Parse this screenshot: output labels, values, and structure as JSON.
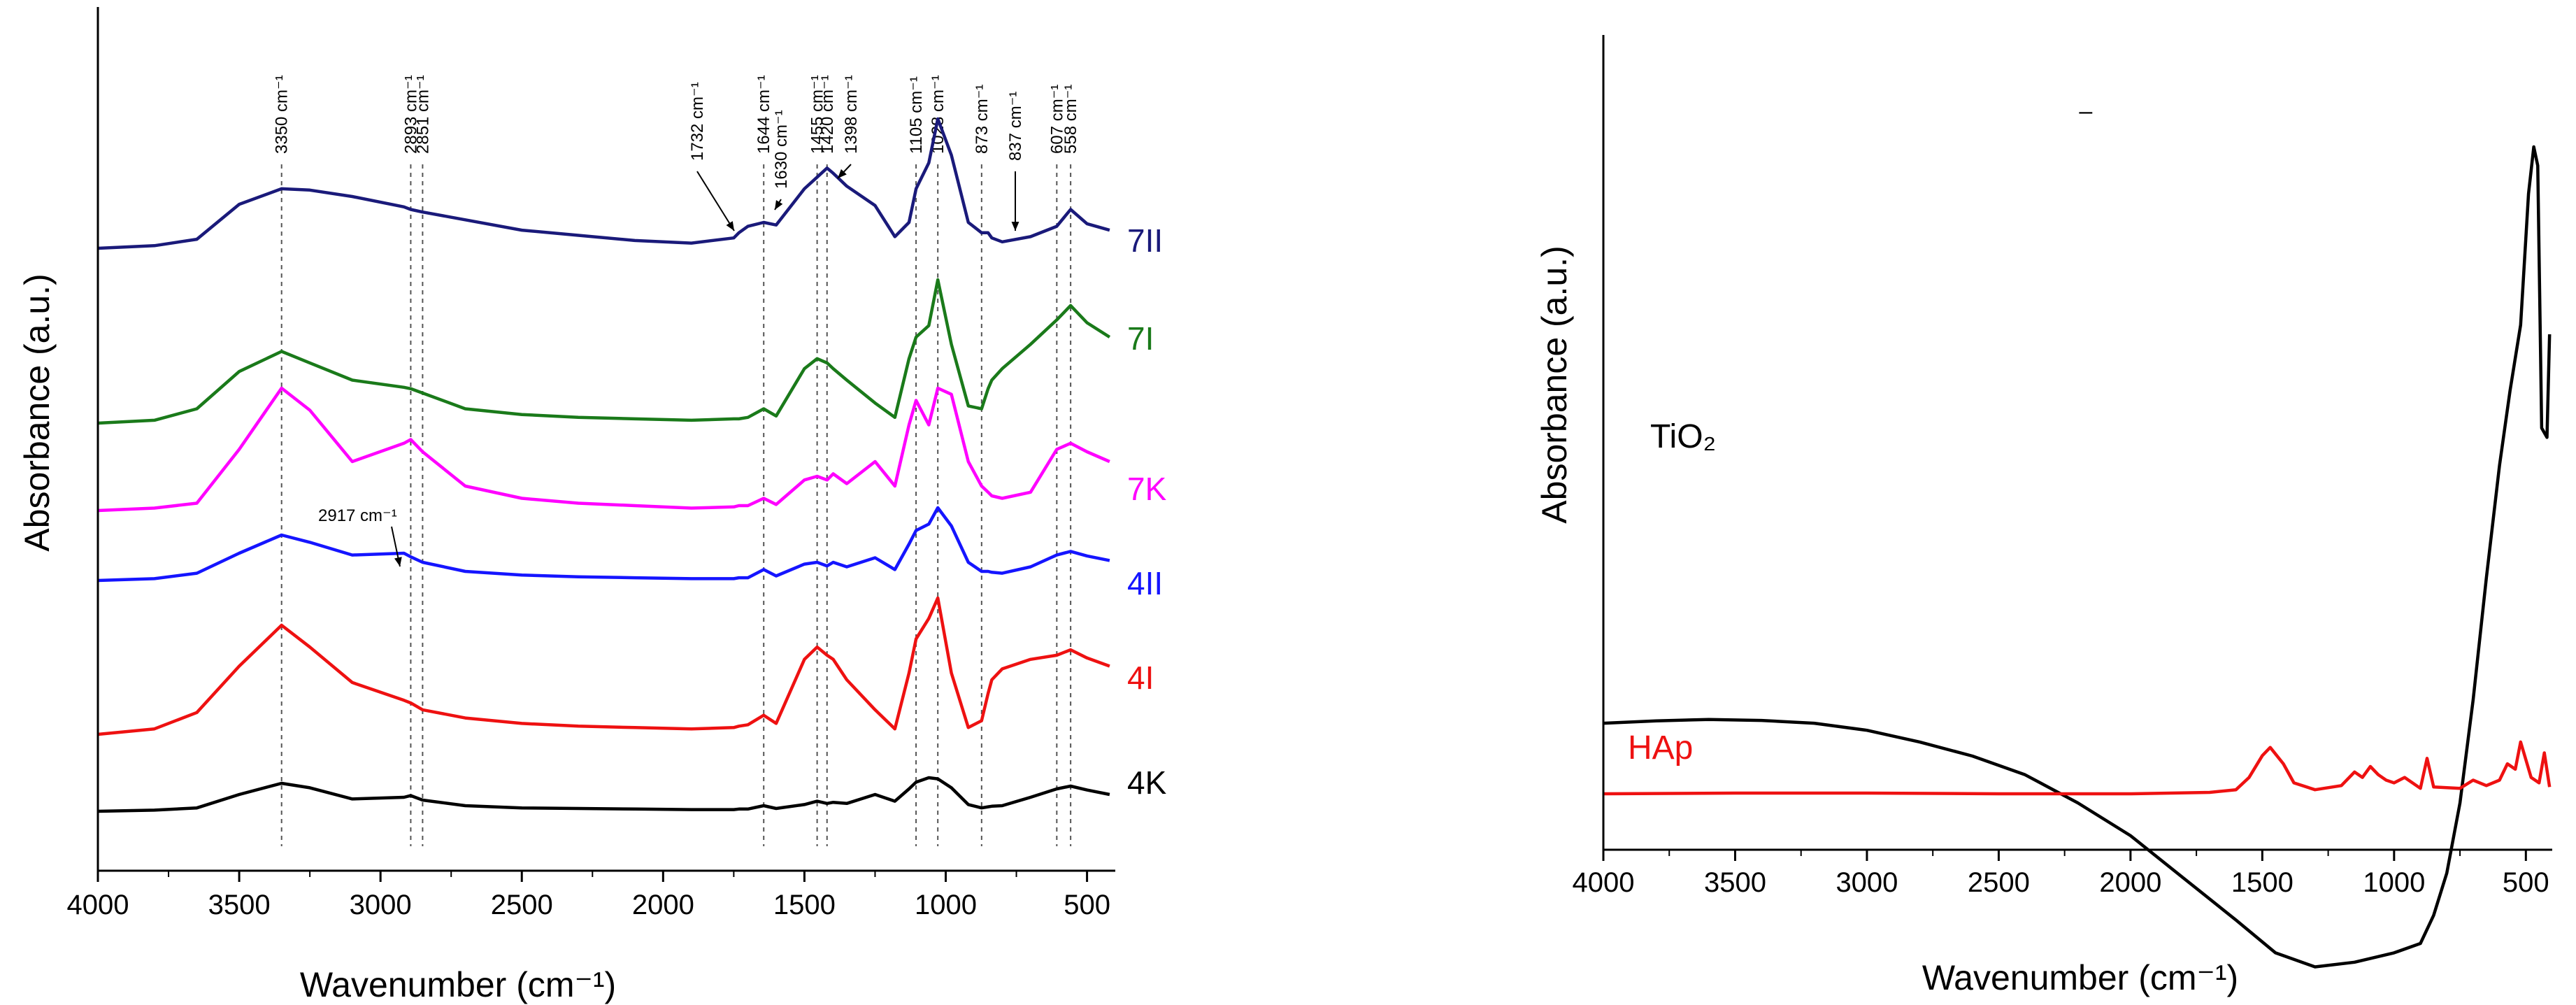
{
  "chart_data": [
    {
      "type": "line",
      "xlabel": "Wavenumber (cm⁻¹)",
      "ylabel": "Absorbance (a.u.)",
      "xlim": [
        4000,
        400
      ],
      "xticks": [
        4000,
        3500,
        3000,
        2500,
        2000,
        1500,
        1000,
        500
      ],
      "yticks": false,
      "grid": false,
      "x": [
        4000,
        3800,
        3650,
        3500,
        3350,
        3250,
        3100,
        2917,
        2893,
        2851,
        2700,
        2500,
        2300,
        2100,
        1900,
        1750,
        1732,
        1700,
        1644,
        1600,
        1500,
        1455,
        1420,
        1398,
        1350,
        1250,
        1180,
        1130,
        1105,
        1060,
        1028,
        980,
        920,
        873,
        850,
        837,
        800,
        700,
        607,
        558,
        500,
        420
      ],
      "series": [
        {
          "name": "7II",
          "color": "#1a1a7a",
          "values": [
            0.0,
            0.02,
            0.07,
            0.34,
            0.46,
            0.45,
            0.4,
            0.32,
            0.3,
            0.28,
            0.22,
            0.14,
            0.1,
            0.06,
            0.04,
            0.08,
            0.12,
            0.17,
            0.2,
            0.18,
            0.46,
            0.55,
            0.62,
            0.58,
            0.48,
            0.33,
            0.09,
            0.2,
            0.46,
            0.66,
            1.0,
            0.72,
            0.2,
            0.12,
            0.12,
            0.08,
            0.05,
            0.09,
            0.17,
            0.3,
            0.19,
            0.14
          ]
        },
        {
          "name": "7I",
          "color": "#1a7a1a",
          "values": [
            0.0,
            0.02,
            0.1,
            0.36,
            0.5,
            0.42,
            0.3,
            0.25,
            0.24,
            0.21,
            0.1,
            0.06,
            0.04,
            0.03,
            0.02,
            0.03,
            0.03,
            0.04,
            0.1,
            0.05,
            0.38,
            0.45,
            0.42,
            0.38,
            0.3,
            0.14,
            0.04,
            0.45,
            0.6,
            0.68,
            1.0,
            0.55,
            0.12,
            0.1,
            0.24,
            0.3,
            0.38,
            0.55,
            0.72,
            0.82,
            0.7,
            0.6
          ]
        },
        {
          "name": "7K",
          "color": "#ff00ff",
          "values": [
            0.0,
            0.02,
            0.06,
            0.5,
            1.0,
            0.82,
            0.4,
            0.55,
            0.58,
            0.48,
            0.2,
            0.1,
            0.06,
            0.04,
            0.02,
            0.03,
            0.04,
            0.04,
            0.1,
            0.05,
            0.25,
            0.28,
            0.25,
            0.3,
            0.22,
            0.4,
            0.2,
            0.7,
            0.9,
            0.7,
            1.0,
            0.95,
            0.4,
            0.2,
            0.15,
            0.12,
            0.1,
            0.15,
            0.5,
            0.55,
            0.48,
            0.4
          ]
        },
        {
          "name": "4II",
          "color": "#1515ff",
          "values": [
            0.0,
            0.02,
            0.08,
            0.3,
            0.5,
            0.42,
            0.28,
            0.3,
            0.26,
            0.2,
            0.1,
            0.06,
            0.04,
            0.03,
            0.02,
            0.02,
            0.03,
            0.03,
            0.12,
            0.05,
            0.18,
            0.2,
            0.16,
            0.2,
            0.15,
            0.25,
            0.12,
            0.4,
            0.55,
            0.62,
            0.8,
            0.6,
            0.2,
            0.1,
            0.1,
            0.09,
            0.08,
            0.15,
            0.28,
            0.32,
            0.27,
            0.22
          ]
        },
        {
          "name": "4I",
          "color": "#ee1111",
          "values": [
            0.0,
            0.04,
            0.16,
            0.5,
            0.8,
            0.64,
            0.38,
            0.25,
            0.23,
            0.18,
            0.12,
            0.08,
            0.06,
            0.05,
            0.04,
            0.05,
            0.06,
            0.07,
            0.14,
            0.08,
            0.55,
            0.64,
            0.58,
            0.55,
            0.4,
            0.18,
            0.04,
            0.45,
            0.7,
            0.85,
            1.0,
            0.45,
            0.05,
            0.1,
            0.3,
            0.4,
            0.48,
            0.55,
            0.58,
            0.62,
            0.56,
            0.5
          ]
        },
        {
          "name": "4K",
          "color": "#000000",
          "values": [
            0.0,
            0.02,
            0.06,
            0.3,
            0.5,
            0.42,
            0.22,
            0.25,
            0.28,
            0.2,
            0.1,
            0.06,
            0.05,
            0.04,
            0.03,
            0.03,
            0.04,
            0.04,
            0.1,
            0.05,
            0.12,
            0.18,
            0.14,
            0.16,
            0.14,
            0.3,
            0.18,
            0.4,
            0.52,
            0.6,
            0.58,
            0.42,
            0.12,
            0.06,
            0.08,
            0.09,
            0.1,
            0.25,
            0.4,
            0.45,
            0.38,
            0.3
          ]
        }
      ],
      "series_labels": [
        "7II",
        "7I",
        "7K",
        "4II",
        "4I",
        "4K"
      ],
      "reference_lines": [
        {
          "wavenumber": 3350,
          "label": "3350 cm⁻¹"
        },
        {
          "wavenumber": 2893,
          "label": "2893 cm⁻¹"
        },
        {
          "wavenumber": 2851,
          "label": "2851 cm⁻¹"
        },
        {
          "wavenumber": 1644,
          "label": "1644 cm⁻¹"
        },
        {
          "wavenumber": 1455,
          "label": "1455 cm⁻¹"
        },
        {
          "wavenumber": 1420,
          "label": "1420 cm⁻¹"
        },
        {
          "wavenumber": 1105,
          "label": "1105 cm⁻¹"
        },
        {
          "wavenumber": 1028,
          "label": "1028 cm⁻¹"
        },
        {
          "wavenumber": 873,
          "label": "873 cm⁻¹"
        },
        {
          "wavenumber": 607,
          "label": "607 cm⁻¹"
        },
        {
          "wavenumber": 558,
          "label": "558 cm⁻¹"
        }
      ],
      "annotations": [
        {
          "text": "1732 cm⁻¹",
          "wavenumber": 1732,
          "series": "7II"
        },
        {
          "text": "1630 cm⁻¹",
          "wavenumber": 1630,
          "series": "7II"
        },
        {
          "text": "1398 cm⁻¹",
          "wavenumber": 1398,
          "series": "7II"
        },
        {
          "text": "837 cm⁻¹",
          "wavenumber": 837,
          "series": "7II"
        },
        {
          "text": "2917 cm⁻¹",
          "wavenumber": 2917,
          "series": "4II"
        }
      ]
    },
    {
      "type": "line",
      "xlabel": "Wavenumber (cm⁻¹)",
      "ylabel": "Absorbance (a.u.)",
      "xlim": [
        4000,
        400
      ],
      "xticks": [
        4000,
        3500,
        3000,
        2500,
        2000,
        1500,
        1000,
        500
      ],
      "yticks": false,
      "grid": false,
      "series": [
        {
          "name": "TiO₂",
          "color": "#000000",
          "x": [
            4000,
            3800,
            3600,
            3400,
            3200,
            3000,
            2800,
            2600,
            2400,
            2200,
            2000,
            1800,
            1600,
            1450,
            1300,
            1150,
            1000,
            900,
            850,
            800,
            750,
            700,
            650,
            600,
            560,
            520,
            490,
            470,
            455,
            440,
            420,
            410
          ],
          "values": [
            0.77,
            0.775,
            0.778,
            0.776,
            0.77,
            0.755,
            0.73,
            0.7,
            0.66,
            0.6,
            0.53,
            0.44,
            0.35,
            0.28,
            0.25,
            0.26,
            0.28,
            0.3,
            0.36,
            0.45,
            0.6,
            0.82,
            1.08,
            1.32,
            1.48,
            1.62,
            1.9,
            2.0,
            1.96,
            1.4,
            1.38,
            1.6
          ]
        },
        {
          "name": "HAp",
          "color": "#ee1111",
          "x": [
            4000,
            3500,
            3000,
            2500,
            2000,
            1700,
            1600,
            1550,
            1500,
            1470,
            1420,
            1380,
            1300,
            1200,
            1150,
            1120,
            1090,
            1060,
            1030,
            1000,
            960,
            900,
            875,
            850,
            750,
            700,
            650,
            600,
            570,
            540,
            520,
            480,
            450,
            430,
            410
          ],
          "values": [
            0.0,
            0.005,
            0.005,
            0.0,
            0.0,
            0.01,
            0.03,
            0.12,
            0.28,
            0.34,
            0.22,
            0.08,
            0.03,
            0.06,
            0.16,
            0.12,
            0.2,
            0.14,
            0.1,
            0.08,
            0.12,
            0.04,
            0.26,
            0.05,
            0.04,
            0.1,
            0.06,
            0.1,
            0.22,
            0.18,
            0.38,
            0.12,
            0.08,
            0.3,
            0.05
          ]
        }
      ],
      "series_labels": [
        "TiO₂",
        "HAp"
      ],
      "annotations": [
        {
          "text": "–",
          "wavenumber": 2170
        }
      ]
    }
  ]
}
